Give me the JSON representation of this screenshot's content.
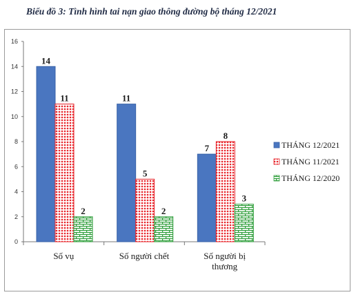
{
  "chart_data": {
    "type": "bar",
    "title": "Biểu đồ 3: Tình hình tai nạn giao thông đường bộ tháng 12/2021",
    "categories": [
      "Số vụ",
      "Số người chết",
      "Số người bị thương"
    ],
    "category_lines": [
      [
        "Số vụ"
      ],
      [
        "Số người chết"
      ],
      [
        "Số người bị",
        "thương"
      ]
    ],
    "series": [
      {
        "name": "THÁNG 12/2021",
        "values": [
          14,
          11,
          7
        ],
        "color": "#4a76c0",
        "pattern": "solid"
      },
      {
        "name": "THÁNG 11/2021",
        "values": [
          11,
          5,
          8
        ],
        "color": "#e8242a",
        "pattern": "dots"
      },
      {
        "name": "THÁNG 12/2020",
        "values": [
          2,
          2,
          3
        ],
        "color": "#2e9e3a",
        "pattern": "brick"
      }
    ],
    "yticks": [
      0,
      2,
      4,
      6,
      8,
      10,
      12,
      14,
      16
    ],
    "ylim": [
      0,
      16
    ],
    "grid": false,
    "legend_position": "right"
  }
}
